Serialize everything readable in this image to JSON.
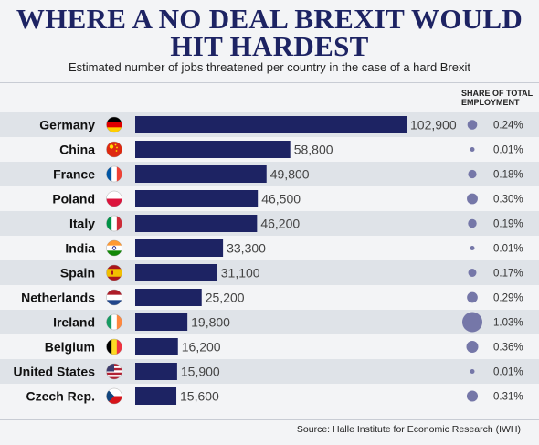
{
  "chart_data": {
    "type": "bar",
    "title": "WHERE A NO DEAL BREXIT WOULD HIT HARDEST",
    "subtitle": "Estimated number of jobs threatened per country in the case of a hard Brexit",
    "share_header": "SHARE OF TOTAL EMPLOYMENT",
    "categories": [
      "Germany",
      "China",
      "France",
      "Poland",
      "Italy",
      "India",
      "Spain",
      "Netherlands",
      "Ireland",
      "Belgium",
      "United States",
      "Czech Rep."
    ],
    "values": [
      102900,
      58800,
      49800,
      46500,
      46200,
      33300,
      31100,
      25200,
      19800,
      16200,
      15900,
      15600
    ],
    "value_labels": [
      "102,900",
      "58,800",
      "49,800",
      "46,500",
      "46,200",
      "33,300",
      "31,100",
      "25,200",
      "19,800",
      "16,200",
      "15,900",
      "15,600"
    ],
    "share_values": [
      0.24,
      0.01,
      0.18,
      0.3,
      0.19,
      0.01,
      0.17,
      0.29,
      1.03,
      0.36,
      0.01,
      0.31
    ],
    "share_labels": [
      "0.24%",
      "0.01%",
      "0.18%",
      "0.30%",
      "0.19%",
      "0.01%",
      "0.17%",
      "0.29%",
      "1.03%",
      "0.36%",
      "0.01%",
      "0.31%"
    ],
    "flags": [
      "germany-flag-icon",
      "china-flag-icon",
      "france-flag-icon",
      "poland-flag-icon",
      "italy-flag-icon",
      "india-flag-icon",
      "spain-flag-icon",
      "netherlands-flag-icon",
      "ireland-flag-icon",
      "belgium-flag-icon",
      "united-states-flag-icon",
      "czech-flag-icon"
    ],
    "source": "Source: Halle Institute for Economic Research (IWH)",
    "colors": {
      "bar": "#1d2363",
      "bubble": "#7577a8",
      "title": "#1d2363",
      "stripe": "#dfe3e8",
      "background": "#f3f4f6"
    }
  }
}
